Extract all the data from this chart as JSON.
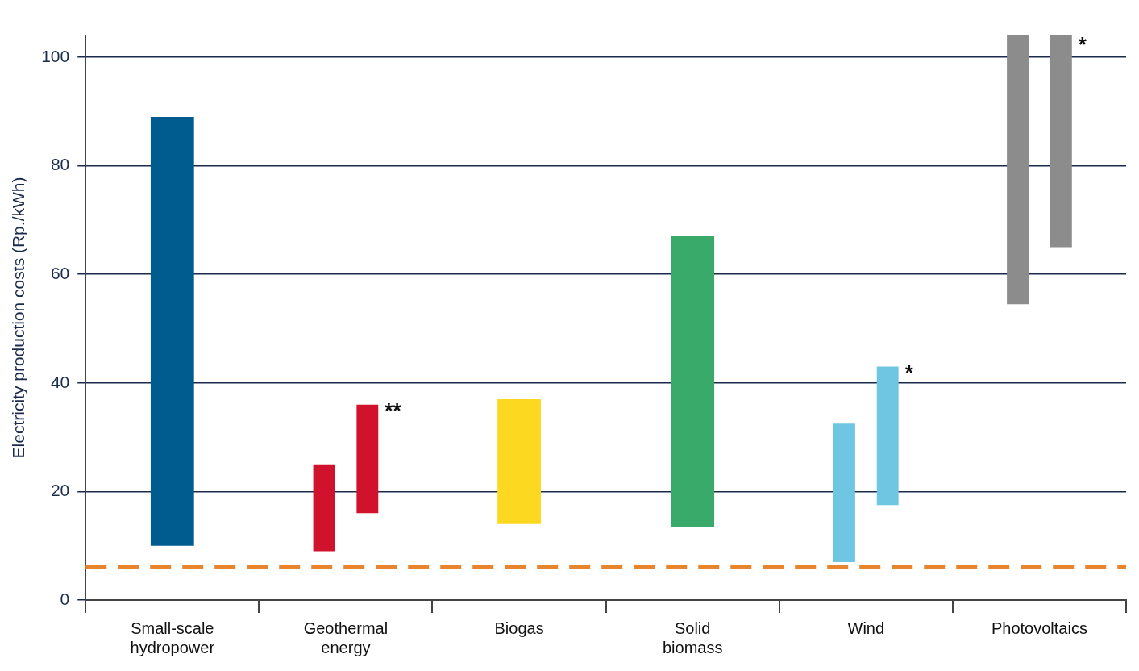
{
  "chart_data": {
    "type": "bar",
    "ylabel": "Electricity production costs (Rp./kWh)",
    "categories": [
      "Small-scale hydropower",
      "Geothermal energy",
      "Biogas",
      "Solid biomass",
      "Wind",
      "Photovoltaics"
    ],
    "series": [
      {
        "colors": [
          "#005b8f",
          "#d0122d",
          "#fcd820",
          "#3aaa6b",
          "#6ec6e2",
          "#8c8c8c"
        ],
        "base": [
          10,
          9,
          14,
          13.5,
          7,
          54.5
        ],
        "values": [
          79,
          16,
          23,
          53.5,
          25.5,
          49.5
        ]
      },
      {
        "colors": [
          null,
          "#d0122d",
          null,
          null,
          "#6ec6e2",
          "#8c8c8c"
        ],
        "base": [
          null,
          16,
          null,
          null,
          17.5,
          65
        ],
        "values": [
          null,
          20,
          null,
          null,
          25.5,
          39
        ]
      }
    ],
    "ylim": [
      0,
      104
    ],
    "yticks": [
      0,
      20,
      40,
      60,
      80,
      100
    ],
    "grid": "y",
    "legend": false,
    "ref_lines": [
      {
        "axis": "y",
        "value": 6,
        "color": "#e8832e",
        "line_style": "dashed"
      }
    ],
    "annotations": [
      "**",
      "*",
      "*"
    ]
  }
}
